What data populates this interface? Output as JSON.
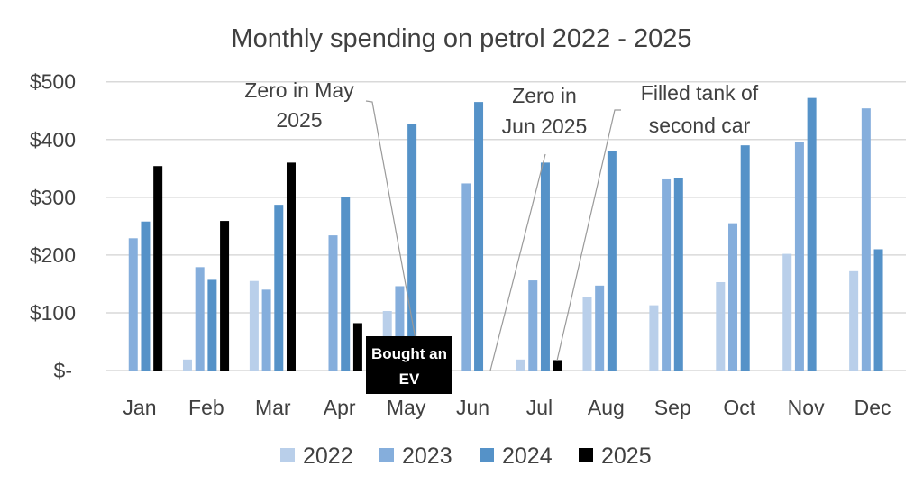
{
  "chart_data": {
    "type": "bar",
    "title": "Monthly spending on petrol 2022 - 2025",
    "xlabel": "",
    "ylabel": "",
    "ylim": [
      0,
      500
    ],
    "y_ticks": [
      0,
      100,
      200,
      300,
      400,
      500
    ],
    "y_tick_labels": [
      "$-",
      "$100",
      "$200",
      "$300",
      "$400",
      "$500"
    ],
    "grid": true,
    "legend_position": "bottom",
    "categories": [
      "Jan",
      "Feb",
      "Mar",
      "Apr",
      "May",
      "Jun",
      "Jul",
      "Aug",
      "Sep",
      "Oct",
      "Nov",
      "Dec"
    ],
    "series": [
      {
        "name": "2022",
        "color": "#b9cfea",
        "values": [
          null,
          19,
          155,
          null,
          103,
          null,
          19,
          127,
          113,
          153,
          202,
          172
        ]
      },
      {
        "name": "2023",
        "color": "#85aedc",
        "values": [
          229,
          179,
          140,
          234,
          146,
          324,
          156,
          147,
          331,
          255,
          395,
          454
        ]
      },
      {
        "name": "2024",
        "color": "#5592c8",
        "values": [
          258,
          157,
          287,
          300,
          427,
          465,
          360,
          380,
          334,
          390,
          472,
          210
        ]
      },
      {
        "name": "2025",
        "color": "#000000",
        "values": [
          354,
          259,
          360,
          82,
          0,
          0,
          18,
          null,
          null,
          null,
          null,
          null
        ]
      }
    ],
    "annotations": [
      {
        "lines": [
          "Zero in May",
          "2025"
        ],
        "month": "May",
        "series": "2025"
      },
      {
        "lines": [
          "Bought an",
          "EV"
        ],
        "month": "May",
        "style": "white text on black box"
      },
      {
        "lines": [
          "Zero in",
          "Jun 2025"
        ],
        "month": "Jun",
        "series": "2025"
      },
      {
        "lines": [
          "Filled tank of",
          "second car"
        ],
        "month": "Jul",
        "series": "2025"
      }
    ]
  }
}
